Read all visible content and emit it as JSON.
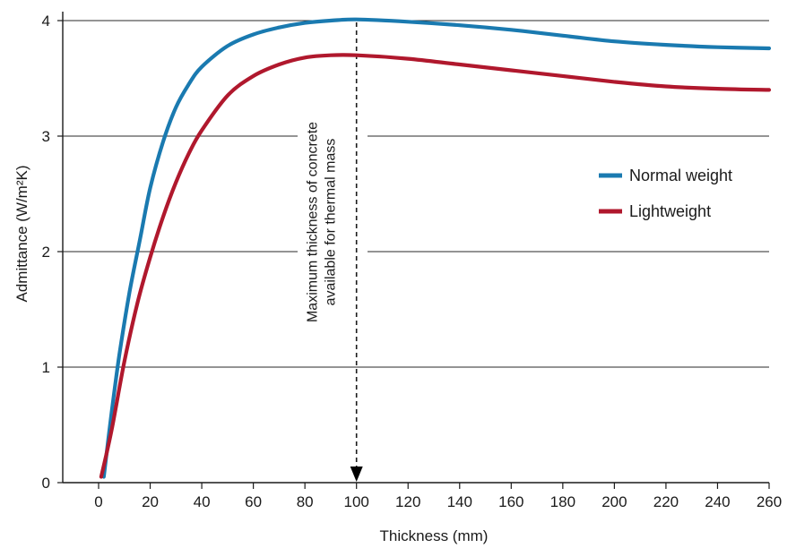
{
  "chart_data": {
    "type": "line",
    "xlabel": "Thickness (mm)",
    "ylabel": "Admittance (W/m²K)",
    "xlim": [
      0,
      260
    ],
    "ylim": [
      0,
      4
    ],
    "x_ticks": [
      0,
      20,
      40,
      60,
      80,
      100,
      120,
      140,
      160,
      180,
      200,
      220,
      240,
      260
    ],
    "x_tick_labels": [
      "0",
      "20",
      "40",
      "60",
      "80",
      "100",
      "120",
      "140",
      "160",
      "180",
      "200",
      "220",
      "240",
      "260"
    ],
    "y_ticks": [
      0,
      1,
      2,
      3,
      4
    ],
    "y_tick_labels": [
      "0",
      "1",
      "2",
      "3",
      "4"
    ],
    "grid": "horizontal",
    "legend_position": "right",
    "series": [
      {
        "name": "Normal weight",
        "color": "#1a7ab0",
        "points": [
          [
            2,
            0.05
          ],
          [
            5,
            0.6
          ],
          [
            8,
            1.1
          ],
          [
            12,
            1.65
          ],
          [
            16,
            2.1
          ],
          [
            20,
            2.55
          ],
          [
            25,
            2.95
          ],
          [
            30,
            3.25
          ],
          [
            35,
            3.45
          ],
          [
            40,
            3.6
          ],
          [
            50,
            3.78
          ],
          [
            60,
            3.88
          ],
          [
            70,
            3.94
          ],
          [
            80,
            3.98
          ],
          [
            90,
            4.0
          ],
          [
            100,
            4.01
          ],
          [
            120,
            3.99
          ],
          [
            140,
            3.96
          ],
          [
            160,
            3.92
          ],
          [
            180,
            3.87
          ],
          [
            200,
            3.82
          ],
          [
            220,
            3.79
          ],
          [
            240,
            3.77
          ],
          [
            260,
            3.76
          ]
        ]
      },
      {
        "name": "Lightweight",
        "color": "#b0182d",
        "points": [
          [
            1,
            0.05
          ],
          [
            5,
            0.45
          ],
          [
            10,
            1.05
          ],
          [
            15,
            1.55
          ],
          [
            20,
            1.95
          ],
          [
            25,
            2.3
          ],
          [
            30,
            2.6
          ],
          [
            35,
            2.85
          ],
          [
            40,
            3.05
          ],
          [
            50,
            3.35
          ],
          [
            60,
            3.52
          ],
          [
            70,
            3.62
          ],
          [
            80,
            3.68
          ],
          [
            90,
            3.7
          ],
          [
            100,
            3.7
          ],
          [
            120,
            3.67
          ],
          [
            140,
            3.62
          ],
          [
            160,
            3.57
          ],
          [
            180,
            3.52
          ],
          [
            200,
            3.47
          ],
          [
            220,
            3.43
          ],
          [
            240,
            3.41
          ],
          [
            260,
            3.4
          ]
        ]
      }
    ],
    "annotation": {
      "x": 100,
      "line1": "Maximum thickness of concrete",
      "line2": "available for thermal mass"
    }
  }
}
